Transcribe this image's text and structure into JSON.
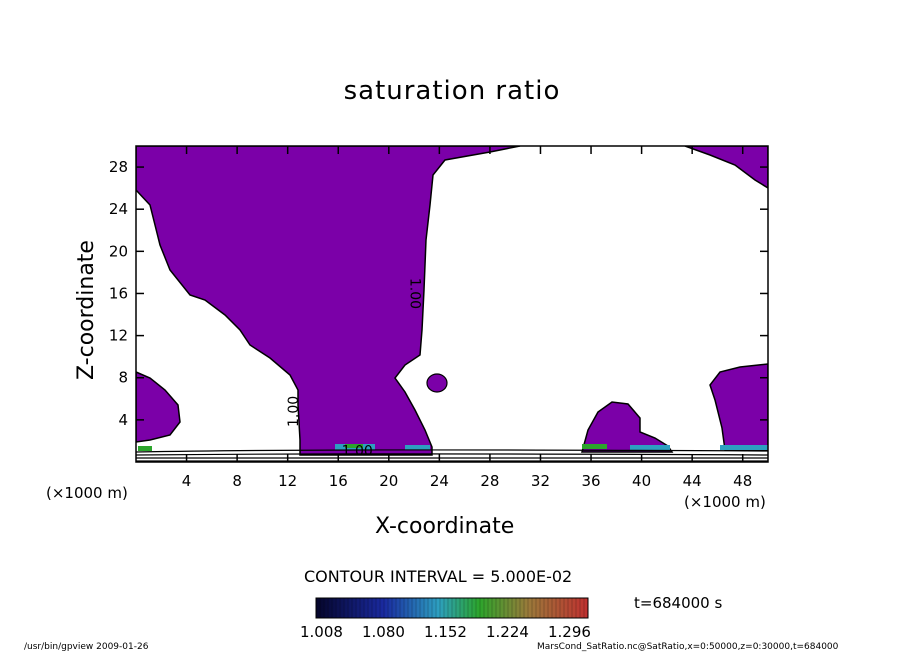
{
  "chart_data": {
    "type": "heatmap",
    "title": "saturation ratio",
    "xlabel": "X-coordinate",
    "ylabel": "Z-coordinate",
    "x_unit": "(×1000 m)",
    "xlim": [
      0,
      50
    ],
    "ylim": [
      0,
      30
    ],
    "x_ticks": [
      4,
      8,
      12,
      16,
      20,
      24,
      28,
      32,
      36,
      40,
      44,
      48
    ],
    "y_ticks": [
      4,
      8,
      12,
      16,
      20,
      24,
      28
    ],
    "contour_labels": [
      "1.00",
      "1.00",
      "1.00"
    ],
    "contour_interval": "CONTOUR INTERVAL = 5.000E-02",
    "colorbar_ticks": [
      "1.008",
      "1.080",
      "1.152",
      "1.224",
      "1.296"
    ],
    "colors": {
      "saturated_fill": "#7b00a8",
      "contour_line": "#000000",
      "colorbar_low": "#05052a",
      "colorbar_mid": "#2ca52c",
      "colorbar_high": "#c03030"
    }
  },
  "annotations": {
    "time": "t=684000 s",
    "footer_left": "/usr/bin/gpview   2009-01-26",
    "footer_right": "MarsCond_SatRatio.nc@SatRatio,x=0:50000,z=0:30000,t=684000"
  }
}
